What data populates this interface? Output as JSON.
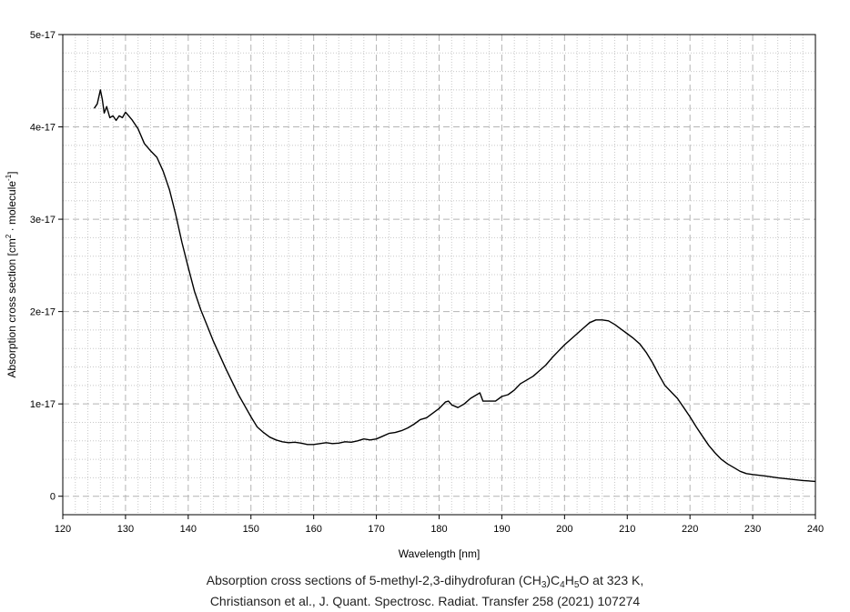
{
  "chart_data": {
    "type": "line",
    "xlabel": "Wavelength [nm]",
    "ylabel_parts": [
      "Absorption cross section [cm",
      "2",
      " · molecule",
      "-1",
      "]"
    ],
    "xlim": [
      120,
      240
    ],
    "ylim": [
      -2e-18,
      5e-17
    ],
    "x_ticks": [
      120,
      130,
      140,
      150,
      160,
      170,
      180,
      190,
      200,
      210,
      220,
      230,
      240
    ],
    "x_tick_labels": [
      "120",
      "130",
      "140",
      "150",
      "160",
      "170",
      "180",
      "190",
      "200",
      "210",
      "220",
      "230",
      "240"
    ],
    "y_ticks": [
      0,
      1e-17,
      2e-17,
      3e-17,
      4e-17,
      5e-17
    ],
    "y_tick_labels": [
      "0",
      "1e-17",
      "2e-17",
      "3e-17",
      "4e-17",
      "5e-17"
    ],
    "grid": true,
    "line_color": "#000000",
    "series": [
      {
        "x": [
          125,
          125.5,
          126,
          126.3,
          126.6,
          127,
          127.5,
          128,
          128.5,
          129,
          129.5,
          130,
          131,
          132,
          133,
          134,
          135,
          136,
          137,
          138,
          139,
          140,
          141,
          142,
          143,
          144,
          145,
          146,
          147,
          148,
          149,
          150,
          151,
          152,
          153,
          154,
          155,
          156,
          157,
          158,
          159,
          160,
          161,
          162,
          163,
          164,
          165,
          166,
          167,
          168,
          169,
          170,
          171,
          172,
          173,
          174,
          175,
          176,
          177,
          178,
          179,
          180,
          181,
          181.5,
          182,
          183,
          184,
          185,
          186,
          186.5,
          187,
          188,
          189,
          190,
          191,
          192,
          193,
          194,
          195,
          196,
          197,
          198,
          199,
          200,
          201,
          202,
          203,
          204,
          205,
          206,
          207,
          208,
          209,
          210,
          211,
          212,
          213,
          214,
          215,
          216,
          217,
          218,
          219,
          220,
          221,
          222,
          223,
          224,
          225,
          226,
          227,
          228,
          229,
          230,
          232,
          234,
          236,
          238,
          240
        ],
        "y": [
          4.2e-17,
          4.25e-17,
          4.4e-17,
          4.3e-17,
          4.15e-17,
          4.22e-17,
          4.1e-17,
          4.12e-17,
          4.07e-17,
          4.12e-17,
          4.1e-17,
          4.16e-17,
          4.08e-17,
          3.98e-17,
          3.82e-17,
          3.74e-17,
          3.67e-17,
          3.52e-17,
          3.32e-17,
          3.05e-17,
          2.75e-17,
          2.48e-17,
          2.22e-17,
          2.02e-17,
          1.85e-17,
          1.68e-17,
          1.53e-17,
          1.38e-17,
          1.24e-17,
          1.1e-17,
          9.8e-18,
          8.6e-18,
          7.5e-18,
          6.9e-18,
          6.4e-18,
          6.1e-18,
          5.9e-18,
          5.8e-18,
          5.85e-18,
          5.75e-18,
          5.6e-18,
          5.6e-18,
          5.7e-18,
          5.8e-18,
          5.7e-18,
          5.75e-18,
          5.9e-18,
          5.85e-18,
          6e-18,
          6.2e-18,
          6.1e-18,
          6.2e-18,
          6.5e-18,
          6.8e-18,
          6.9e-18,
          7.1e-18,
          7.4e-18,
          7.8e-18,
          8.3e-18,
          8.5e-18,
          9e-18,
          9.5e-18,
          1.02e-17,
          1.03e-17,
          9.9e-18,
          9.6e-18,
          1e-17,
          1.06e-17,
          1.1e-17,
          1.12e-17,
          1.03e-17,
          1.03e-17,
          1.03e-17,
          1.08e-17,
          1.1e-17,
          1.15e-17,
          1.22e-17,
          1.26e-17,
          1.3e-17,
          1.36e-17,
          1.42e-17,
          1.5e-17,
          1.57e-17,
          1.64e-17,
          1.7e-17,
          1.76e-17,
          1.82e-17,
          1.88e-17,
          1.91e-17,
          1.91e-17,
          1.9e-17,
          1.86e-17,
          1.81e-17,
          1.76e-17,
          1.71e-17,
          1.65e-17,
          1.56e-17,
          1.45e-17,
          1.32e-17,
          1.2e-17,
          1.13e-17,
          1.06e-17,
          9.6e-18,
          8.6e-18,
          7.5e-18,
          6.5e-18,
          5.5e-18,
          4.7e-18,
          4e-18,
          3.5e-18,
          3.1e-18,
          2.7e-18,
          2.45e-18,
          2.35e-18,
          2.2e-18,
          2e-18,
          1.85e-18,
          1.7e-18,
          1.6e-18
        ]
      }
    ]
  },
  "caption": {
    "line1_parts": [
      "Absorption cross sections of 5-methyl-2,3-dihydrofuran (CH",
      "3",
      ")C",
      "4",
      "H",
      "5",
      "O at 323 K,"
    ],
    "line2": "Christianson et al., J. Quant. Spectrosc. Radiat. Transfer 258 (2021) 107274"
  }
}
